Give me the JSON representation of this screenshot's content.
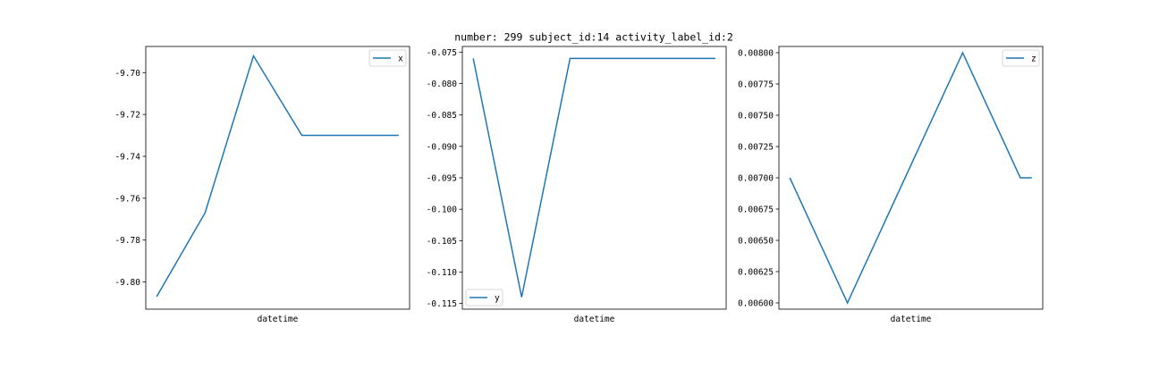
{
  "figure": {
    "title": "number: 299 subject_id:14 activity_label_id:2"
  },
  "chart_data": [
    {
      "type": "line",
      "xlabel": "datetime",
      "ylabel": "",
      "series": [
        {
          "name": "x",
          "color": "#1f77b4",
          "x": [
            0,
            1,
            2,
            3,
            4,
            5
          ],
          "values": [
            -9.807,
            -9.767,
            -9.692,
            -9.73,
            -9.73,
            -9.73
          ]
        }
      ],
      "ylim": [
        -9.813,
        -9.6875
      ],
      "yticks": [
        -9.7,
        -9.72,
        -9.74,
        -9.76,
        -9.78,
        -9.8
      ],
      "ytick_labels": [
        "-9.70",
        "-9.72",
        "-9.74",
        "-9.76",
        "-9.78",
        "-9.80"
      ],
      "legend": "top-right",
      "grid": false
    },
    {
      "type": "line",
      "xlabel": "datetime",
      "ylabel": "",
      "series": [
        {
          "name": "y",
          "color": "#1f77b4",
          "x": [
            0,
            1,
            2,
            3,
            4,
            5
          ],
          "values": [
            -0.076,
            -0.114,
            -0.076,
            -0.076,
            -0.076,
            -0.076
          ]
        }
      ],
      "ylim": [
        -0.1159,
        -0.0741
      ],
      "yticks": [
        -0.075,
        -0.08,
        -0.085,
        -0.09,
        -0.095,
        -0.1,
        -0.105,
        -0.11,
        -0.115
      ],
      "ytick_labels": [
        "-0.075",
        "-0.080",
        "-0.085",
        "-0.090",
        "-0.095",
        "-0.100",
        "-0.105",
        "-0.110",
        "-0.115"
      ],
      "legend": "bottom-left",
      "grid": false
    },
    {
      "type": "line",
      "xlabel": "datetime",
      "ylabel": "",
      "series": [
        {
          "name": "z",
          "color": "#1f77b4",
          "x": [
            0,
            1,
            2,
            3,
            4,
            4.2
          ],
          "values": [
            0.007,
            0.006,
            0.007,
            0.008,
            0.007,
            0.007
          ]
        }
      ],
      "ylim": [
        0.00595,
        0.00805
      ],
      "yticks": [
        0.008,
        0.00775,
        0.0075,
        0.00725,
        0.007,
        0.00675,
        0.0065,
        0.00625,
        0.006
      ],
      "ytick_labels": [
        "0.00800",
        "0.00775",
        "0.00750",
        "0.00725",
        "0.00700",
        "0.00675",
        "0.00650",
        "0.00625",
        "0.00600"
      ],
      "legend": "top-right",
      "grid": false
    }
  ]
}
